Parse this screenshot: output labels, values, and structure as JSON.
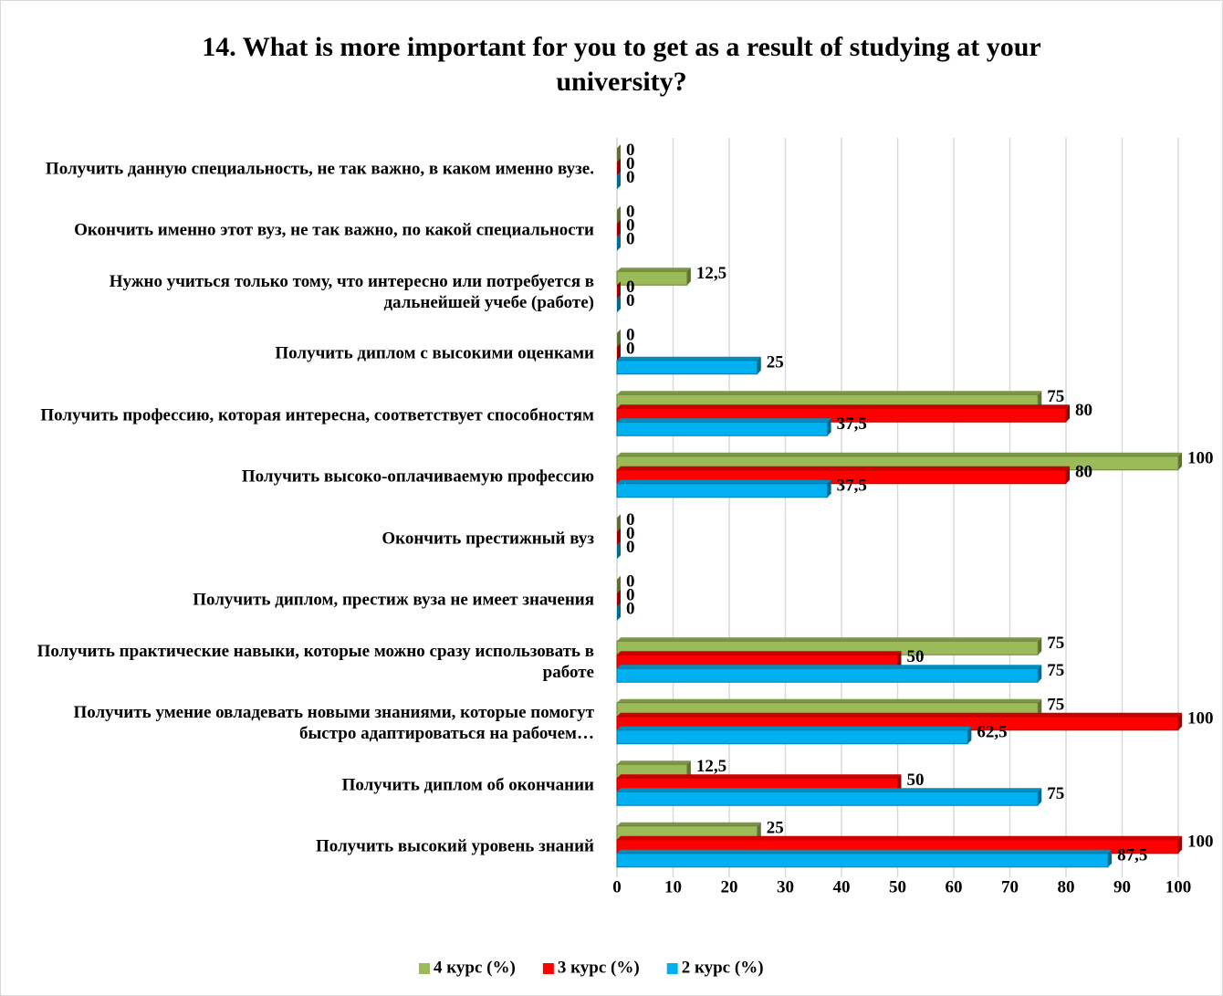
{
  "chart_data": {
    "type": "bar",
    "orientation": "horizontal",
    "title": "14. What is more important for you to get as a result of studying at your university?",
    "categories": [
      "Получить данную специальность, не так важно, в каком именно вузе.",
      "Окончить именно этот вуз, не так важно, по какой специальности",
      "Нужно учиться только тому, что интересно или потребуется в дальнейшей учебе (работе)",
      "Получить диплом с высокими оценками",
      "Получить профессию, которая интересна, соответствует способностям",
      "Получить высоко-оплачиваемую профессию",
      "Окончить престижный вуз",
      "Получить диплом, престиж вуза не имеет значения",
      "Получить практические навыки, которые можно сразу использовать в работе",
      "Получить умение овладевать новыми знаниями, которые помогут быстро адаптироваться на рабочем…",
      "Получить диплом об окончании",
      "Получить высокий уровень знаний"
    ],
    "series": [
      {
        "name": "4 курс (%)",
        "color": "#9bbb59",
        "values": [
          0,
          0,
          12.5,
          0,
          75,
          100,
          0,
          0,
          75,
          75,
          12.5,
          25
        ],
        "value_labels": [
          "0",
          "0",
          "12,5",
          "0",
          "75",
          "100",
          "0",
          "0",
          "75",
          "75",
          "12,5",
          "25"
        ]
      },
      {
        "name": "3 курс (%)",
        "color": "#ff0000",
        "values": [
          0,
          0,
          0,
          0,
          80,
          80,
          0,
          0,
          50,
          100,
          50,
          100
        ],
        "value_labels": [
          "0",
          "0",
          "0",
          "0",
          "80",
          "80",
          "0",
          "0",
          "50",
          "100",
          "50",
          "100"
        ]
      },
      {
        "name": "2 курс (%)",
        "color": "#00b0f0",
        "values": [
          0,
          0,
          0,
          25,
          37.5,
          37.5,
          0,
          0,
          75,
          62.5,
          75,
          87.5
        ],
        "value_labels": [
          "0",
          "0",
          "0",
          "25",
          "37,5",
          "37,5",
          "0",
          "0",
          "75",
          "62,5",
          "75",
          "87,5"
        ]
      }
    ],
    "xlim": [
      0,
      100
    ],
    "xticks": [
      0,
      10,
      20,
      30,
      40,
      50,
      60,
      70,
      80,
      90,
      100
    ],
    "grid": true,
    "legend": "bottom"
  }
}
